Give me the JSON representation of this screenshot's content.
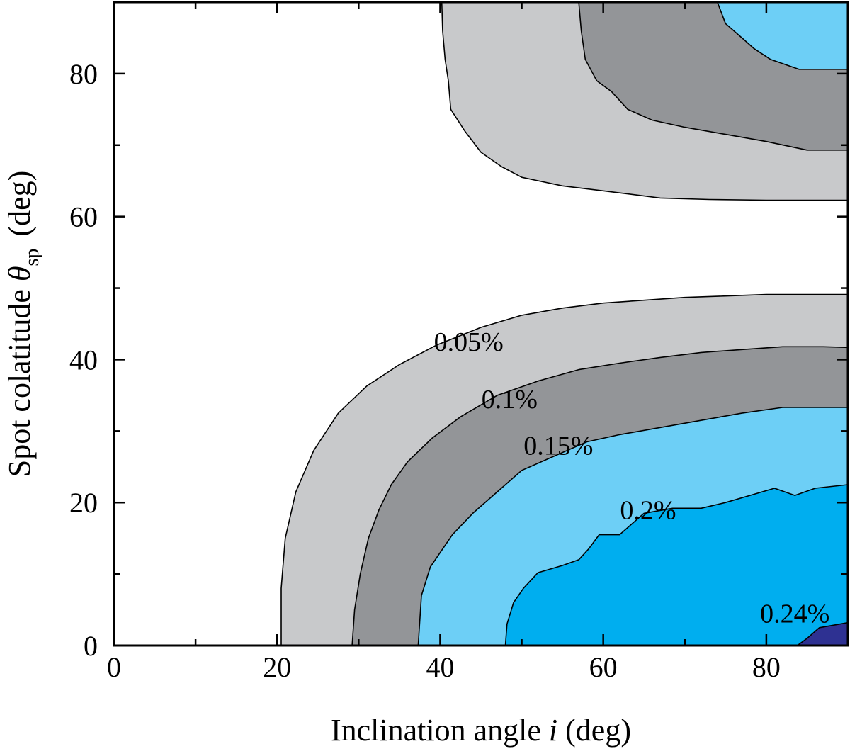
{
  "chart_data": {
    "type": "contour",
    "xlabel": {
      "prefix": "Inclination angle ",
      "var": "i",
      "suffix": " (deg)"
    },
    "ylabel": {
      "prefix": "Spot colatitude ",
      "var": "θ",
      "sub": "sp",
      "suffix": " (deg)"
    },
    "xlim": [
      0,
      90
    ],
    "ylim": [
      0,
      90
    ],
    "xticks": [
      0,
      20,
      40,
      60,
      80
    ],
    "yticks": [
      0,
      20,
      40,
      60,
      80
    ],
    "xtick_labels": [
      "0",
      "20",
      "40",
      "60",
      "80"
    ],
    "ytick_labels": [
      "0",
      "20",
      "40",
      "60",
      "80"
    ],
    "levels": [
      "0.05%",
      "0.1%",
      "0.15%",
      "0.2%",
      "0.24%"
    ],
    "colors": {
      "lvl005": "#c8c9cb",
      "lvl010": "#939598",
      "lvl015": "#6dcff6",
      "lvl020": "#00aeef",
      "lvl024": "#2e3192"
    },
    "annotations": [
      {
        "text": "0.05%",
        "x": 43.5,
        "y": 42.5
      },
      {
        "text": "0.1%",
        "x": 48.5,
        "y": 34.5
      },
      {
        "text": "0.15%",
        "x": 54.5,
        "y": 28
      },
      {
        "text": "0.2%",
        "x": 65.5,
        "y": 19
      },
      {
        "text": "0.24%",
        "x": 83.5,
        "y": 4.5
      }
    ],
    "regions": [
      {
        "name": "top-0.05",
        "color_key": "lvl005",
        "points": [
          [
            40.2,
            90
          ],
          [
            40.3,
            86
          ],
          [
            40.6,
            82
          ],
          [
            41.0,
            79
          ],
          [
            41.3,
            75
          ],
          [
            43.0,
            72
          ],
          [
            45.0,
            69
          ],
          [
            47.5,
            67
          ],
          [
            50.0,
            65.5
          ],
          [
            55.0,
            64.3
          ],
          [
            60.0,
            63.6
          ],
          [
            67.0,
            62.6
          ],
          [
            73.0,
            62.4
          ],
          [
            80.0,
            62.3
          ],
          [
            90,
            62.3
          ],
          [
            90,
            90
          ]
        ]
      },
      {
        "name": "top-0.1",
        "color_key": "lvl010",
        "points": [
          [
            57.0,
            90
          ],
          [
            57.3,
            86
          ],
          [
            57.8,
            82
          ],
          [
            59.2,
            79
          ],
          [
            61.0,
            77.5
          ],
          [
            63.0,
            75
          ],
          [
            66.0,
            73.5
          ],
          [
            70.0,
            72.5
          ],
          [
            75.0,
            71.5
          ],
          [
            80.0,
            70.5
          ],
          [
            85.0,
            69.3
          ],
          [
            90,
            69.3
          ],
          [
            90,
            90
          ]
        ]
      },
      {
        "name": "top-0.15",
        "color_key": "lvl015",
        "points": [
          [
            74.0,
            90
          ],
          [
            75.0,
            87
          ],
          [
            77.0,
            85
          ],
          [
            78.5,
            83.5
          ],
          [
            80.5,
            82.0
          ],
          [
            84.0,
            80.6
          ],
          [
            87.0,
            80.6
          ],
          [
            90,
            80.6
          ],
          [
            90,
            90
          ]
        ]
      },
      {
        "name": "bot-0.05",
        "color_key": "lvl005",
        "points": [
          [
            20.5,
            0
          ],
          [
            20.5,
            8
          ],
          [
            21.0,
            15
          ],
          [
            22.3,
            21.5
          ],
          [
            24.5,
            27.3
          ],
          [
            27.5,
            32.5
          ],
          [
            31.0,
            36.3
          ],
          [
            35.0,
            39.3
          ],
          [
            39.5,
            42.0
          ],
          [
            45.0,
            44.5
          ],
          [
            50.0,
            46.2
          ],
          [
            55.0,
            47.2
          ],
          [
            60.0,
            47.9
          ],
          [
            65.0,
            48.3
          ],
          [
            70.0,
            48.7
          ],
          [
            75.0,
            48.9
          ],
          [
            80.0,
            49.1
          ],
          [
            90,
            49.1
          ],
          [
            90,
            0
          ]
        ]
      },
      {
        "name": "bot-0.1",
        "color_key": "lvl010",
        "points": [
          [
            29.2,
            0
          ],
          [
            29.5,
            5
          ],
          [
            30.2,
            10
          ],
          [
            31.2,
            15
          ],
          [
            32.5,
            19
          ],
          [
            34.0,
            22.5
          ],
          [
            36.0,
            25.7
          ],
          [
            39.0,
            29.0
          ],
          [
            42.5,
            32.0
          ],
          [
            47.0,
            35.0
          ],
          [
            52.0,
            37.0
          ],
          [
            57.0,
            38.6
          ],
          [
            62.0,
            39.5
          ],
          [
            67.0,
            40.3
          ],
          [
            72.0,
            41.0
          ],
          [
            77.0,
            41.4
          ],
          [
            82.0,
            41.8
          ],
          [
            87.0,
            41.8
          ],
          [
            90,
            41.7
          ],
          [
            90,
            0
          ]
        ]
      },
      {
        "name": "bot-0.15",
        "color_key": "lvl015",
        "points": [
          [
            37.3,
            0
          ],
          [
            37.7,
            7
          ],
          [
            38.8,
            11
          ],
          [
            40.0,
            13
          ],
          [
            41.5,
            15.5
          ],
          [
            44.0,
            18.5
          ],
          [
            46.5,
            21
          ],
          [
            50.0,
            24.5
          ],
          [
            54.0,
            26.5
          ],
          [
            58.0,
            28.5
          ],
          [
            62.0,
            29.5
          ],
          [
            67.0,
            30.5
          ],
          [
            72.0,
            31.5
          ],
          [
            77.0,
            32.5
          ],
          [
            82.0,
            33.3
          ],
          [
            87.0,
            33.3
          ],
          [
            90,
            33.3
          ],
          [
            90,
            0
          ]
        ]
      },
      {
        "name": "bot-0.2",
        "color_key": "lvl020",
        "points": [
          [
            48.0,
            0
          ],
          [
            48.2,
            3
          ],
          [
            49.0,
            6
          ],
          [
            50.2,
            8
          ],
          [
            52.0,
            10.2
          ],
          [
            55.0,
            11.2
          ],
          [
            57.0,
            12
          ],
          [
            58.2,
            13.5
          ],
          [
            59.5,
            15.5
          ],
          [
            62.0,
            15.5
          ],
          [
            65.0,
            18.5
          ],
          [
            68.5,
            19.2
          ],
          [
            72.0,
            19.2
          ],
          [
            75.0,
            20
          ],
          [
            78.0,
            21
          ],
          [
            81.0,
            22
          ],
          [
            83.5,
            21
          ],
          [
            86.0,
            22
          ],
          [
            90,
            22.5
          ],
          [
            90,
            0
          ]
        ]
      },
      {
        "name": "bot-0.24",
        "color_key": "lvl024",
        "points": [
          [
            83.8,
            0
          ],
          [
            85.0,
            1
          ],
          [
            86.5,
            2.5
          ],
          [
            90,
            3.2
          ],
          [
            90,
            0
          ]
        ]
      }
    ]
  }
}
